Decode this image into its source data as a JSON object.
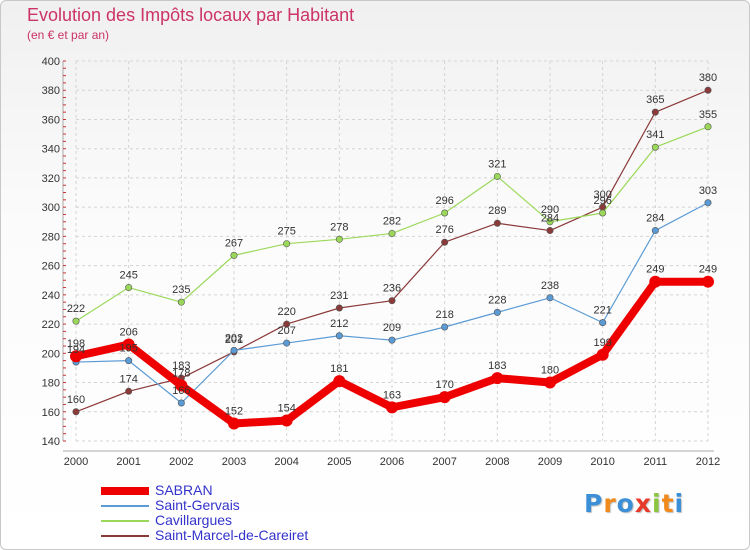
{
  "title": "Evolution des Impôts locaux par Habitant",
  "subtitle": "(en € et par an)",
  "logo": {
    "letters": [
      "P",
      "r",
      "o",
      "x",
      "i",
      "t",
      "i"
    ],
    "colors": [
      "#3a8fd6",
      "#f08a1c",
      "#3a8fd6",
      "#e83a2a",
      "#8bc53f",
      "#f08a1c",
      "#3a8fd6"
    ]
  },
  "chart_data": {
    "type": "line",
    "x": [
      "2000",
      "2001",
      "2002",
      "2003",
      "2004",
      "2005",
      "2006",
      "2007",
      "2008",
      "2009",
      "2010",
      "2011",
      "2012"
    ],
    "yticks": [
      "140",
      "160",
      "180",
      "200",
      "220",
      "240",
      "260",
      "280",
      "300",
      "320",
      "340",
      "360",
      "380",
      "400"
    ],
    "ylim": [
      140,
      400
    ],
    "grid": true,
    "series": [
      {
        "name": "SABRAN",
        "color": "#ee0000",
        "values": [
          198,
          206,
          178,
          152,
          154,
          181,
          163,
          170,
          183,
          180,
          199,
          249,
          249
        ],
        "labels": [
          "198",
          "206",
          "178",
          "152",
          "154",
          "181",
          "163",
          "170",
          "183",
          "180",
          "199",
          "249",
          "249"
        ]
      },
      {
        "name": "Saint-Gervais",
        "color": "#5b9bd5",
        "values": [
          194,
          195,
          166,
          202,
          207,
          212,
          209,
          218,
          228,
          238,
          221,
          284,
          303
        ],
        "labels": [
          "194",
          "195",
          "166",
          "202",
          "207",
          "212",
          "209",
          "218",
          "228",
          "238",
          "221",
          "284",
          "303"
        ]
      },
      {
        "name": "Cavillargues",
        "color": "#9bd85a",
        "values": [
          222,
          245,
          235,
          267,
          275,
          278,
          282,
          296,
          321,
          290,
          296,
          341,
          355
        ],
        "labels": [
          "222",
          "245",
          "235",
          "267",
          "275",
          "278",
          "282",
          "296",
          "321",
          "290",
          "296",
          "341",
          "355"
        ]
      },
      {
        "name": "Saint-Marcel-de-Careiret",
        "color": "#8b3a3a",
        "values": [
          160,
          174,
          183,
          201,
          220,
          231,
          236,
          276,
          289,
          284,
          300,
          365,
          380
        ],
        "labels": [
          "160",
          "174",
          "183",
          "201",
          "220",
          "231",
          "236",
          "276",
          "289",
          "284",
          "300",
          "365",
          "380"
        ]
      }
    ]
  }
}
